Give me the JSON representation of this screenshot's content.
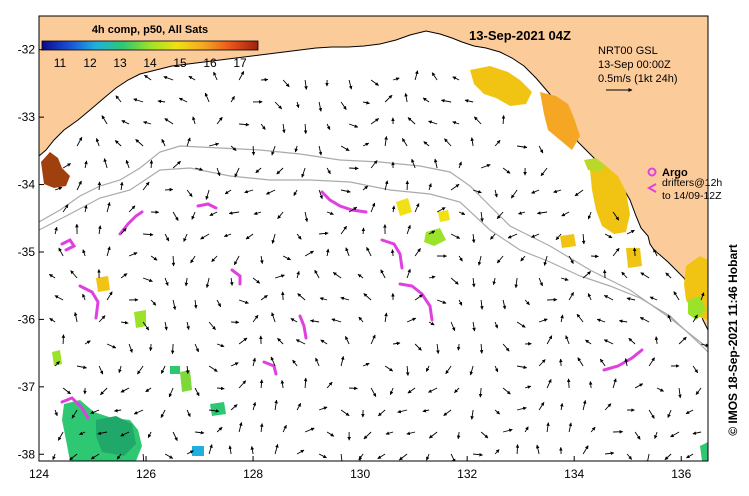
{
  "map": {
    "title": "13-Sep-2021 04Z",
    "colorbar": {
      "title": "4h comp, p50, All Sats",
      "ticks": [
        "11",
        "12",
        "13",
        "14",
        "15",
        "16",
        "17"
      ],
      "range": [
        10.4,
        17.6
      ],
      "colors": [
        "#0a0a8c",
        "#1a4fd6",
        "#1fb0e0",
        "#2ec873",
        "#9be22a",
        "#f1e014",
        "#f5a623",
        "#e8541a",
        "#a0200e"
      ]
    },
    "currents_legend": {
      "line1": "NRT00 GSL",
      "line2": "13-Sep 00:00Z",
      "line3": "0.5m/s (1kt 24h)"
    },
    "argo_legend": {
      "label": "Argo",
      "line1": "drifters@12h",
      "line2": "to 14/09-12Z",
      "color": "#e040e0"
    },
    "credit": "© IMOS 18-Sep-2021 11:46 Hobart",
    "x_ticks": [
      "124",
      "126",
      "128",
      "130",
      "132",
      "134",
      "136"
    ],
    "y_ticks": [
      "-32",
      "-33",
      "-34",
      "-35",
      "-36",
      "-37",
      "-38"
    ],
    "lon_range": [
      124,
      136.5
    ],
    "lat_range": [
      -31.5,
      -38.1
    ],
    "land_color": "#fccb9a",
    "ocean_color": "#ffffff",
    "contour_color": "#aaaaaa"
  }
}
